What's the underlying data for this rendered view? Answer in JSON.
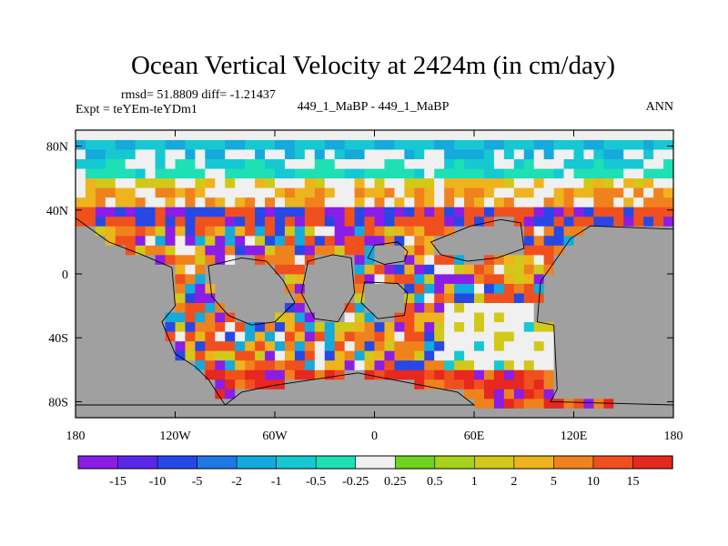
{
  "chart_data": {
    "type": "heatmap",
    "title": "Ocean Vertical Velocity at 2424m (in cm/day)",
    "stats": "rmsd= 51.8809 diff= -1.21437",
    "experiment": "Expt = teYEm-teYDm1",
    "comparison": "449_1_MaBP - 449_1_MaBP",
    "season": "ANN",
    "xlabel": "",
    "ylabel": "",
    "xlim": [
      -180,
      180
    ],
    "ylim": [
      -90,
      90
    ],
    "x_ticks": [
      {
        "value": -180,
        "label": "180"
      },
      {
        "value": -120,
        "label": "120W"
      },
      {
        "value": -60,
        "label": "60W"
      },
      {
        "value": 0,
        "label": "0"
      },
      {
        "value": 60,
        "label": "60E"
      },
      {
        "value": 120,
        "label": "120E"
      },
      {
        "value": 180,
        "label": "180"
      }
    ],
    "y_ticks": [
      {
        "value": 80,
        "label": "80N"
      },
      {
        "value": 40,
        "label": "40N"
      },
      {
        "value": 0,
        "label": "0"
      },
      {
        "value": -40,
        "label": "40S"
      },
      {
        "value": -80,
        "label": "80S"
      }
    ],
    "colorbar": {
      "levels": [
        "-15",
        "-10",
        "-5",
        "-2",
        "-1",
        "-0.5",
        "-0.25",
        "0.25",
        "0.5",
        "1",
        "2",
        "5",
        "10",
        "15"
      ],
      "colors": [
        "#8a1ee6",
        "#5a28e8",
        "#2848e6",
        "#1e78e6",
        "#14aadc",
        "#16c8d2",
        "#1ee0b4",
        "#f0f0f0",
        "#6ed21e",
        "#a6d21a",
        "#d2c81a",
        "#eeb41e",
        "#f0821e",
        "#f0501e",
        "#e6281e"
      ]
    },
    "land_color": "#a0a0a0",
    "regions": [
      {
        "name": "arctic-band",
        "lat": [
          60,
          88
        ],
        "lon": [
          -180,
          180
        ],
        "class": "mixed-negative-positive"
      },
      {
        "name": "north-mid-latitude-band",
        "lat": [
          30,
          60
        ],
        "lon": [
          -180,
          180
        ],
        "class": "mixed"
      },
      {
        "name": "southern-ocean-ring",
        "lat": [
          -82,
          -60
        ],
        "lon": [
          -100,
          40
        ],
        "class": "strong-positive"
      },
      {
        "name": "south-indian-basin",
        "lat": [
          -70,
          -20
        ],
        "lon": [
          40,
          110
        ],
        "class": "near-zero"
      }
    ]
  }
}
